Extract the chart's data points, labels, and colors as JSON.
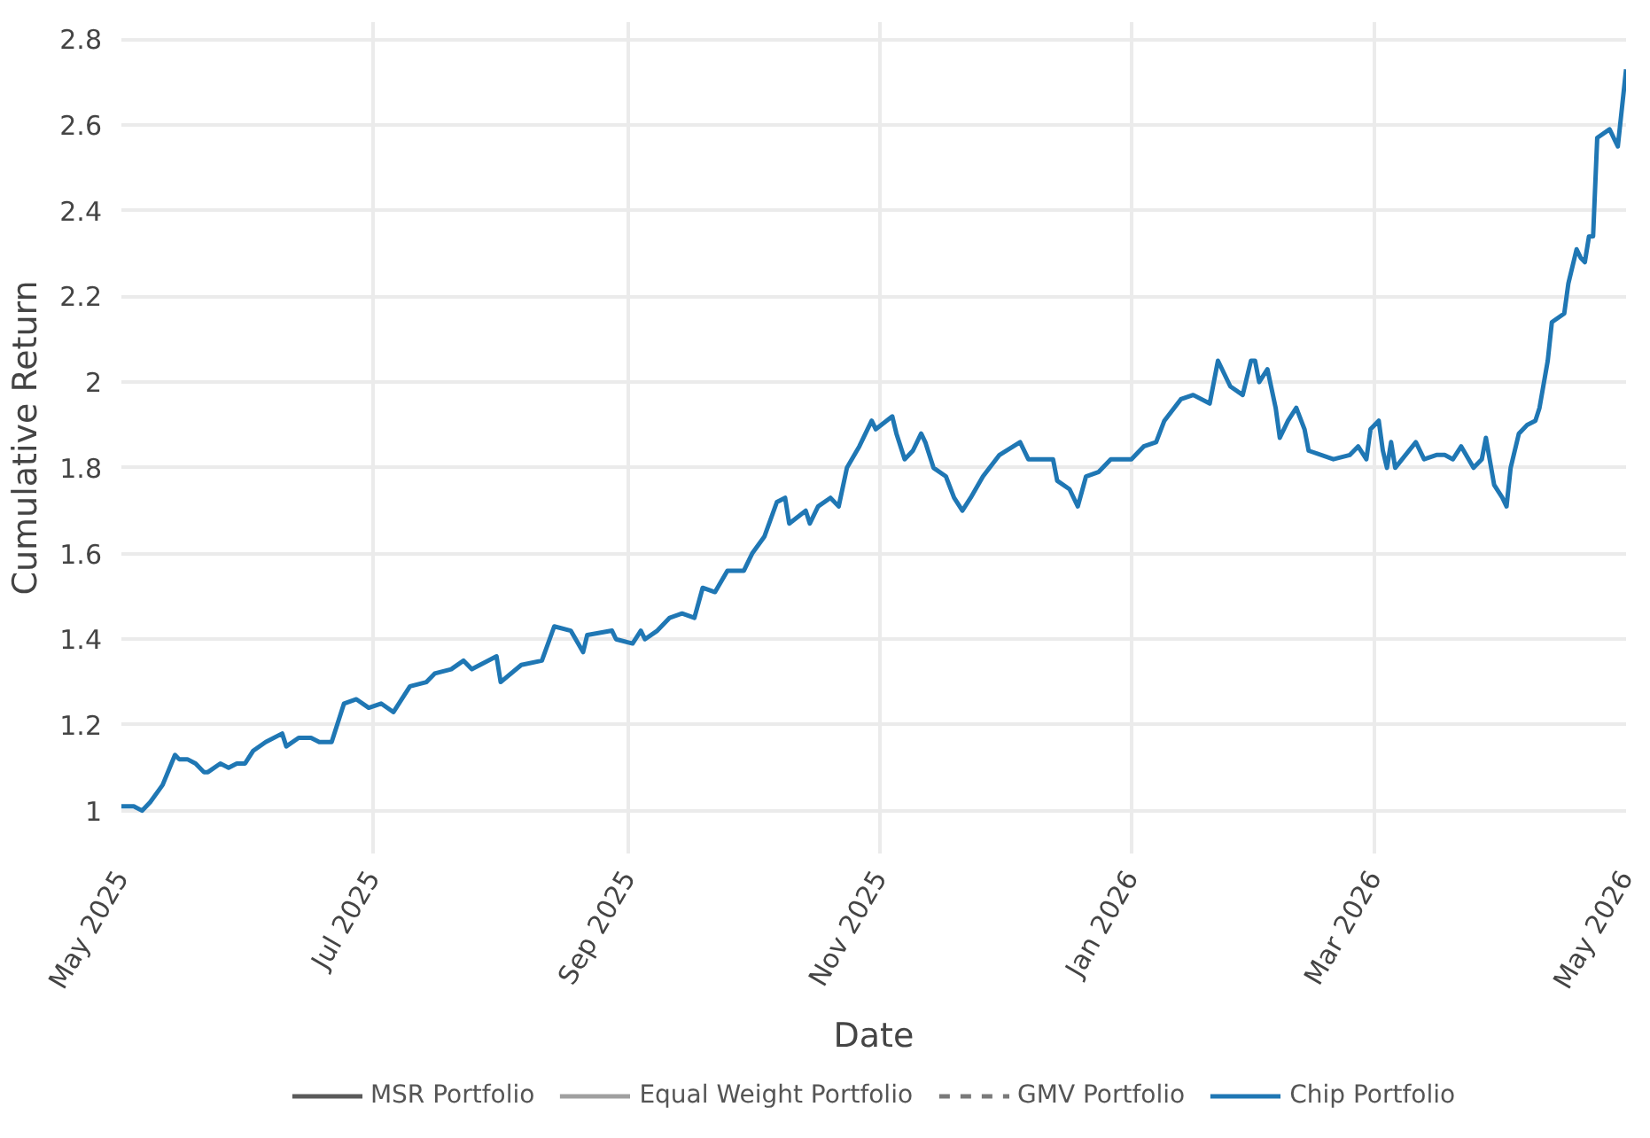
{
  "chart_data": {
    "type": "line",
    "xlabel": "Date",
    "ylabel": "Cumulative Return",
    "xlim": [
      "2025-05-01",
      "2026-05-01"
    ],
    "ylim": [
      0.9,
      2.84
    ],
    "xticks": [
      {
        "value": "2025-05-01",
        "label": "May 2025"
      },
      {
        "value": "2025-07-01",
        "label": "Jul 2025"
      },
      {
        "value": "2025-09-01",
        "label": "Sep 2025"
      },
      {
        "value": "2025-11-01",
        "label": "Nov 2025"
      },
      {
        "value": "2026-01-01",
        "label": "Jan 2026"
      },
      {
        "value": "2026-03-01",
        "label": "Mar 2026"
      },
      {
        "value": "2026-05-01",
        "label": "May 2026"
      }
    ],
    "yticks": [
      1,
      1.2,
      1.4,
      1.6,
      1.8,
      2,
      2.2,
      2.4,
      2.6,
      2.8
    ],
    "grid": true,
    "legend": "bottom",
    "marker": "none",
    "series": [
      {
        "name": "MSR Portfolio",
        "color": "#5a5a5a",
        "line_style": "solid"
      },
      {
        "name": "Equal Weight Portfolio",
        "color": "#a0a0a0",
        "line_style": "solid"
      },
      {
        "name": "GMV Portfolio",
        "color": "#7a7a7a",
        "line_style": "dashed"
      },
      {
        "name": "Chip Portfolio",
        "color": "#1f77b4",
        "line_style": "solid",
        "x": [
          "2025-05-01",
          "2025-05-04",
          "2025-05-06",
          "2025-05-08",
          "2025-05-11",
          "2025-05-14",
          "2025-05-15",
          "2025-05-17",
          "2025-05-19",
          "2025-05-21",
          "2025-05-22",
          "2025-05-25",
          "2025-05-27",
          "2025-05-29",
          "2025-05-31",
          "2025-06-02",
          "2025-06-05",
          "2025-06-09",
          "2025-06-10",
          "2025-06-13",
          "2025-06-16",
          "2025-06-18",
          "2025-06-21",
          "2025-06-24",
          "2025-06-27",
          "2025-06-30",
          "2025-07-03",
          "2025-07-06",
          "2025-07-10",
          "2025-07-14",
          "2025-07-16",
          "2025-07-20",
          "2025-07-23",
          "2025-07-25",
          "2025-07-31",
          "2025-08-01",
          "2025-08-06",
          "2025-08-11",
          "2025-08-14",
          "2025-08-18",
          "2025-08-21",
          "2025-08-22",
          "2025-08-28",
          "2025-08-29",
          "2025-09-02",
          "2025-09-04",
          "2025-09-05",
          "2025-09-08",
          "2025-09-11",
          "2025-09-14",
          "2025-09-17",
          "2025-09-19",
          "2025-09-22",
          "2025-09-25",
          "2025-09-29",
          "2025-10-01",
          "2025-10-04",
          "2025-10-07",
          "2025-10-09",
          "2025-10-10",
          "2025-10-14",
          "2025-10-15",
          "2025-10-17",
          "2025-10-20",
          "2025-10-22",
          "2025-10-24",
          "2025-10-27",
          "2025-10-30",
          "2025-10-31",
          "2025-11-04",
          "2025-11-05",
          "2025-11-07",
          "2025-11-09",
          "2025-11-11",
          "2025-11-12",
          "2025-11-14",
          "2025-11-17",
          "2025-11-19",
          "2025-11-21",
          "2025-11-23",
          "2025-11-26",
          "2025-11-30",
          "2025-12-05",
          "2025-12-07",
          "2025-12-13",
          "2025-12-14",
          "2025-12-17",
          "2025-12-19",
          "2025-12-21",
          "2025-12-24",
          "2025-12-27",
          "2026-01-01",
          "2026-01-04",
          "2026-01-07",
          "2026-01-09",
          "2026-01-13",
          "2026-01-16",
          "2026-01-20",
          "2026-01-22",
          "2026-01-25",
          "2026-01-28",
          "2026-01-30",
          "2026-01-31",
          "2026-02-01",
          "2026-02-03",
          "2026-02-05",
          "2026-02-06",
          "2026-02-08",
          "2026-02-10",
          "2026-02-12",
          "2026-02-13",
          "2026-02-19",
          "2026-02-23",
          "2026-02-25",
          "2026-02-27",
          "2026-02-28",
          "2026-03-02",
          "2026-03-03",
          "2026-03-04",
          "2026-03-05",
          "2026-03-06",
          "2026-03-11",
          "2026-03-13",
          "2026-03-16",
          "2026-03-18",
          "2026-03-20",
          "2026-03-22",
          "2026-03-25",
          "2026-03-27",
          "2026-03-28",
          "2026-03-30",
          "2026-04-01",
          "2026-04-02",
          "2026-04-03",
          "2026-04-05",
          "2026-04-07",
          "2026-04-09",
          "2026-04-10",
          "2026-04-12",
          "2026-04-13",
          "2026-04-16",
          "2026-04-17",
          "2026-04-19",
          "2026-04-20",
          "2026-04-21",
          "2026-04-22",
          "2026-04-23",
          "2026-04-24",
          "2026-04-27",
          "2026-04-29",
          "2026-05-01"
        ],
        "values": [
          1.01,
          1.01,
          1.0,
          1.02,
          1.06,
          1.13,
          1.12,
          1.12,
          1.11,
          1.09,
          1.09,
          1.11,
          1.1,
          1.11,
          1.11,
          1.14,
          1.16,
          1.18,
          1.15,
          1.17,
          1.17,
          1.16,
          1.16,
          1.25,
          1.26,
          1.24,
          1.25,
          1.23,
          1.29,
          1.3,
          1.32,
          1.33,
          1.35,
          1.33,
          1.36,
          1.3,
          1.34,
          1.35,
          1.43,
          1.42,
          1.37,
          1.41,
          1.42,
          1.4,
          1.39,
          1.42,
          1.4,
          1.42,
          1.45,
          1.46,
          1.45,
          1.52,
          1.51,
          1.56,
          1.56,
          1.6,
          1.64,
          1.72,
          1.73,
          1.67,
          1.7,
          1.67,
          1.71,
          1.73,
          1.71,
          1.8,
          1.85,
          1.91,
          1.89,
          1.92,
          1.88,
          1.82,
          1.84,
          1.88,
          1.86,
          1.8,
          1.78,
          1.73,
          1.7,
          1.73,
          1.78,
          1.83,
          1.86,
          1.82,
          1.82,
          1.77,
          1.75,
          1.71,
          1.78,
          1.79,
          1.82,
          1.82,
          1.85,
          1.86,
          1.91,
          1.96,
          1.97,
          1.95,
          2.05,
          1.99,
          1.97,
          2.05,
          2.05,
          2.0,
          2.03,
          1.94,
          1.87,
          1.91,
          1.94,
          1.89,
          1.84,
          1.82,
          1.83,
          1.85,
          1.82,
          1.89,
          1.91,
          1.84,
          1.8,
          1.86,
          1.8,
          1.86,
          1.82,
          1.83,
          1.83,
          1.82,
          1.85,
          1.8,
          1.82,
          1.87,
          1.76,
          1.73,
          1.71,
          1.8,
          1.88,
          1.9,
          1.91,
          1.94,
          2.05,
          2.14,
          2.16,
          2.23,
          2.31,
          2.29,
          2.28,
          2.34,
          2.34,
          2.57,
          2.59,
          2.55,
          2.73
        ]
      }
    ]
  }
}
